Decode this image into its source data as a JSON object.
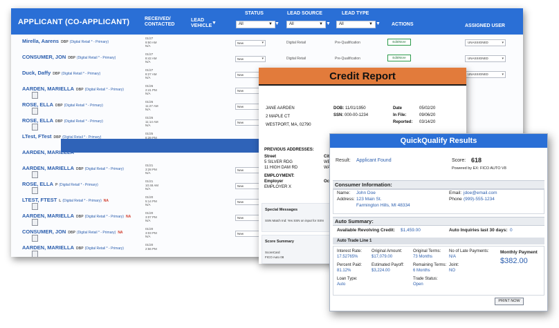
{
  "lead_list": {
    "headers": {
      "applicant": "APPLICANT (CO-APPLICANT)",
      "received_line1": "RECEIVED/",
      "received_line2": "CONTACTED",
      "vehicle_line1": "LEAD",
      "vehicle_line2": "VEHICLE",
      "status": "STATUS",
      "lead_source": "LEAD SOURCE",
      "lead_type": "LEAD TYPE",
      "actions": "ACTIONS",
      "assigned_user": "ASSIGNED USER",
      "filter_all": "All"
    },
    "rows": [
      {
        "name": "Mirella, Aarens",
        "badge": "DBP",
        "tag": "(Digital Retail * - Primary)",
        "na": "",
        "doc": false,
        "date1": "01/27",
        "date2": "9:50 AM",
        "date3": "N/A",
        "status": "New",
        "source": "Digital Retail",
        "type": "Pre-Qualification",
        "edit": "Edit/More",
        "assigned": "UNASSIGNED"
      },
      {
        "name": "CONSUMER, JON",
        "badge": "DBP",
        "tag": "(Digital Retail * - Primary)",
        "na": "",
        "doc": false,
        "date1": "01/27",
        "date2": "8:42 AM",
        "date3": "N/A",
        "status": "New",
        "source": "Digital Retail",
        "type": "Pre-Qualification",
        "edit": "Edit/More",
        "assigned": "UNASSIGNED"
      },
      {
        "name": "Duck, Daffy",
        "badge": "DBP",
        "tag": "(Digital Retail * - Primary)",
        "na": "",
        "doc": false,
        "date1": "01/27",
        "date2": "8:27 AM",
        "date3": "N/A",
        "status": "New",
        "source": "",
        "type": "",
        "edit": "",
        "assigned": "UNASSIGNED"
      },
      {
        "name": "AARDEN, MARIELLA",
        "badge": "DBP",
        "tag": "(Digital Retail * - Primary)",
        "na": "",
        "doc": true,
        "date1": "01/26",
        "date2": "2:41 PM",
        "date3": "N/A",
        "status": "New",
        "source": "",
        "type": "",
        "edit": "",
        "assigned": ""
      },
      {
        "name": "ROSE, ELLA",
        "badge": "DBP",
        "tag": "(Digital Retail * - Primary)",
        "na": "",
        "doc": true,
        "date1": "01/26",
        "date2": "11:27 AM",
        "date3": "N/A",
        "status": "New",
        "source": "",
        "type": "",
        "edit": "",
        "assigned": ""
      },
      {
        "name": "ROSE, ELLA",
        "badge": "DBP",
        "tag": "(Digital Retail * - Primary)",
        "na": "",
        "doc": true,
        "date1": "01/26",
        "date2": "11:14 AM",
        "date3": "N/A",
        "status": "New",
        "source": "",
        "type": "",
        "edit": "",
        "assigned": ""
      },
      {
        "name": "LTest, FTest",
        "badge": "DBP",
        "tag": "(Digital Retail * - Primary)",
        "na": "",
        "doc": false,
        "date1": "01/25",
        "date2": "8:39 PM",
        "date3": "N/A",
        "status": "",
        "source": "",
        "type": "",
        "edit": "",
        "assigned": ""
      },
      {
        "name": "AARDEN, MARIELLA",
        "badge": "",
        "tag": "",
        "na": "",
        "doc": false,
        "date1": "",
        "date2": "",
        "date3": "N/A",
        "status": "",
        "source": "",
        "type": "",
        "edit": "",
        "assigned": ""
      },
      {
        "name": "AARDEN, MARIELLA",
        "badge": "DBP",
        "tag": "(Digital Retail * - Primary)",
        "na": "",
        "doc": true,
        "date1": "01/21",
        "date2": "3:28 PM",
        "date3": "N/A",
        "status": "New",
        "source": "",
        "type": "",
        "edit": "",
        "assigned": ""
      },
      {
        "name": "ROSE, ELLA",
        "badge": "P",
        "tag": "(Digital Retail * - Primary)",
        "na": "",
        "doc": true,
        "date1": "01/21",
        "date2": "10:48 AM",
        "date3": "N/A",
        "status": "New",
        "source": "",
        "type": "",
        "edit": "",
        "assigned": ""
      },
      {
        "name": "LTEST, FTEST",
        "badge": "L",
        "tag": "(Digital Retail * - Primary)",
        "na": "NA",
        "doc": true,
        "date1": "01/20",
        "date2": "5:14 PM",
        "date3": "N/A",
        "status": "New",
        "source": "",
        "type": "",
        "edit": "",
        "assigned": ""
      },
      {
        "name": "AARDEN, MARIELLA",
        "badge": "DBP",
        "tag": "(Digital Retail * - Primary)",
        "na": "NA",
        "doc": true,
        "date1": "01/20",
        "date2": "3:07 PM",
        "date3": "N/A",
        "status": "New",
        "source": "",
        "type": "",
        "edit": "",
        "assigned": ""
      },
      {
        "name": "CONSUMER, JON",
        "badge": "DBP",
        "tag": "(Digital Retail * - Primary)",
        "na": "NA",
        "doc": true,
        "date1": "01/20",
        "date2": "3:03 PM",
        "date3": "N/A",
        "status": "New",
        "source": "",
        "type": "",
        "edit": "",
        "assigned": ""
      },
      {
        "name": "AARDEN, MARIELLA",
        "badge": "DBP",
        "tag": "(Digital Retail * - Primary)",
        "na": "",
        "doc": true,
        "date1": "01/20",
        "date2": "2:56 PM",
        "date3": "",
        "status": "",
        "source": "",
        "type": "",
        "edit": "",
        "assigned": ""
      }
    ]
  },
  "credit_report": {
    "title": "Credit Report",
    "name": "JANE AARDEN",
    "address1": "2 MAPLE CT",
    "address2": "WESTPORT, MA, 02790",
    "dob_label": "DOB:",
    "dob": "11/01/1950",
    "ssn_label": "SSN:",
    "ssn": "000-00-1234",
    "date_label": "Date",
    "date": "05/02/20",
    "infile_label": "In File:",
    "infile": "09/06/20",
    "reported_label": "Reported:",
    "reported": "03/14/20",
    "prev_label": "PREVIOUS ADDRESSES:",
    "prev_col1": "Street",
    "prev_col2": "Cit",
    "prev1": "5 SILVER RDG",
    "prev1_city": "WE",
    "prev2": "11 HIGH DAM RD",
    "prev2_city": "WA",
    "employment_label": "EMPLOYMENT:",
    "employer_label": "Employer",
    "employer": "EMPLOYER X",
    "employer_tail": "Oc",
    "special_label": "Special Messages",
    "special_text": "SSN Match Ind: Yes SSN on input for SSN",
    "score_label": "Score Summary",
    "score_line1": "ScoreCard",
    "score_line2": "FICO Auto 08"
  },
  "quickqualify": {
    "title": "QuickQualify Results",
    "result_label": "Result:",
    "result_value": "Applicant Found",
    "score_label": "Score:",
    "score_value": "618",
    "powered": "Powered by EX: FICO AUTO V8",
    "consumer_section": "Consumer Information:",
    "name_label": "Name:",
    "name_value": "John Doe",
    "address_label": "Address:",
    "address1": "123 Main St.",
    "address2": "Farmington Hills, MI 48334",
    "email_label": "Email:",
    "email_value": "jdoe@email.com",
    "phone_label": "Phone",
    "phone_value": "(999)-555-1234",
    "auto_section": "Auto Summary:",
    "revolving_label": "Available Revolving Credit:",
    "revolving_value": "$1,459.00",
    "inquiries_label": "Auto Inquiries last 30 days:",
    "inquiries_value": "0",
    "tradeline": "Auto Trade Line 1",
    "interest_label": "Interest Rate:",
    "interest_value": "17.52765%",
    "orig_amount_label": "Original Amount:",
    "orig_amount_value": "$17,079.00",
    "orig_terms_label": "Original Terms:",
    "orig_terms_value": "73 Months",
    "late_label": "No of Late Payments:",
    "late_value": "N/A",
    "monthly_label": "Monthly Payment",
    "monthly_value": "$382.00",
    "percent_paid_label": "Percent Paid:",
    "percent_paid_value": "81.12%",
    "payoff_label": "Estimated Payoff:",
    "payoff_value": "$3,224.00",
    "remaining_label": "Remaining Terms:",
    "remaining_value": "6 Months",
    "joint_label": "Joint:",
    "joint_value": "NO",
    "loan_type_label": "Loan Type:",
    "loan_type_value": "Auto",
    "trade_status_label": "Trade Status:",
    "trade_status_value": "Open",
    "print_button": "PRINT NOW"
  },
  "colors": {
    "header_blue": "#2a6fd6",
    "arrow_blue": "#2f63b8",
    "credit_orange": "#e27b3b",
    "link_blue": "#2a5dad",
    "na_red": "#d03a2a"
  }
}
